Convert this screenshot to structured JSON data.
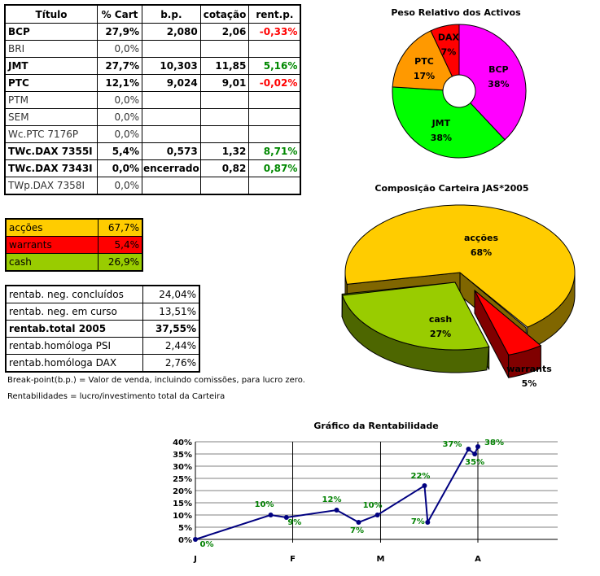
{
  "holdings": {
    "headers": [
      "Título",
      "% Cart",
      "b.p.",
      "cotação",
      "rent.p."
    ],
    "rows": [
      {
        "name": "BCP",
        "pct": "27,9%",
        "bp": "2,080",
        "cot": "2,06",
        "rent": "-0,33%",
        "bold": true,
        "rent_sign": "neg"
      },
      {
        "name": "BRI",
        "pct": "0,0%",
        "bp": "",
        "cot": "",
        "rent": "",
        "bold": false
      },
      {
        "name": "JMT",
        "pct": "27,7%",
        "bp": "10,303",
        "cot": "11,85",
        "rent": "5,16%",
        "bold": true,
        "rent_sign": "pos"
      },
      {
        "name": "PTC",
        "pct": "12,1%",
        "bp": "9,024",
        "cot": "9,01",
        "rent": "-0,02%",
        "bold": true,
        "rent_sign": "neg"
      },
      {
        "name": "PTM",
        "pct": "0,0%",
        "bp": "",
        "cot": "",
        "rent": "",
        "bold": false
      },
      {
        "name": "SEM",
        "pct": "0,0%",
        "bp": "",
        "cot": "",
        "rent": "",
        "bold": false
      },
      {
        "name": "Wc.PTC 7176P",
        "pct": "0,0%",
        "bp": "",
        "cot": "",
        "rent": "",
        "bold": false
      },
      {
        "name": "TWc.DAX 7355I",
        "pct": "5,4%",
        "bp": "0,573",
        "cot": "1,32",
        "rent": "8,71%",
        "bold": true,
        "rent_sign": "pos"
      },
      {
        "name": "TWc.DAX 7343I",
        "pct": "0,0%",
        "bp": "encerrado",
        "cot": "0,82",
        "rent": "0,87%",
        "bold": true,
        "rent_sign": "pos"
      },
      {
        "name": "TWp.DAX 7358I",
        "pct": "0,0%",
        "bp": "",
        "cot": "",
        "rent": "",
        "bold": false
      }
    ]
  },
  "composition": [
    {
      "label": "acções",
      "value": "67,7%",
      "color": "#ffcc00"
    },
    {
      "label": "warrants",
      "value": "5,4%",
      "color": "#ff0000"
    },
    {
      "label": "cash",
      "value": "26,9%",
      "color": "#99cc00"
    }
  ],
  "returns": [
    {
      "label": "rentab. neg. concluídos",
      "value": "24,04%"
    },
    {
      "label": "rentab. neg. em curso",
      "value": "13,51%"
    },
    {
      "label": "rentab.total 2005",
      "value": "37,55%",
      "bold": true
    },
    {
      "label": "rentab.homóloga PSI",
      "value": "2,44%"
    },
    {
      "label": "rentab.homóloga DAX",
      "value": "2,76%"
    }
  ],
  "notes": [
    "Break-point(b.p.) = Valor de venda, incluindo comissões, para lucro zero.",
    "Rentabilidades = lucro/investimento total da Carteira"
  ],
  "chart_data": [
    {
      "type": "pie",
      "variant": "donut",
      "title": "Peso Relativo dos Activos",
      "slices": [
        {
          "label": "BCP",
          "value": 38,
          "display": "38%",
          "color": "#ff00ff"
        },
        {
          "label": "JMT",
          "value": 38,
          "display": "38%",
          "color": "#00ff00"
        },
        {
          "label": "PTC",
          "value": 17,
          "display": "17%",
          "color": "#ff9900"
        },
        {
          "label": "DAX",
          "value": 7,
          "display": "7%",
          "color": "#ff0000"
        }
      ]
    },
    {
      "type": "pie",
      "variant": "3d-exploded",
      "title": "Composição Carteira JAS*2005",
      "slices": [
        {
          "label": "acções",
          "value": 68,
          "display": "68%",
          "color": "#ffcc00"
        },
        {
          "label": "warrants",
          "value": 5,
          "display": "5%",
          "color": "#ff0000"
        },
        {
          "label": "cash",
          "value": 27,
          "display": "27%",
          "color": "#99cc00"
        }
      ]
    },
    {
      "type": "line",
      "title": "Gráfico da Rentabilidade",
      "xlabel": "",
      "ylabel": "",
      "grid": true,
      "xticks": [
        {
          "label": "J",
          "date": "2005-01-01"
        },
        {
          "label": "F",
          "date": "2005-02-01"
        },
        {
          "label": "M",
          "date": "2005-03-01"
        },
        {
          "label": "A",
          "date": "2005-04-01"
        }
      ],
      "xlim": [
        "2005-01-01",
        "2005-04-26"
      ],
      "ylim": [
        0,
        40
      ],
      "yticks": [
        "0%",
        "5%",
        "10%",
        "15%",
        "20%",
        "25%",
        "30%",
        "35%",
        "40%"
      ],
      "line_color": "#000080",
      "label_color": "#008000",
      "points": [
        {
          "x": "2005-01-01",
          "y": 0,
          "label": "0%"
        },
        {
          "x": "2005-01-25",
          "y": 10,
          "label": "10%"
        },
        {
          "x": "2005-01-30",
          "y": 9,
          "label": "9%"
        },
        {
          "x": "2005-02-15",
          "y": 12,
          "label": "12%"
        },
        {
          "x": "2005-02-22",
          "y": 7,
          "label": "7%"
        },
        {
          "x": "2005-02-28",
          "y": 10,
          "label": "10%"
        },
        {
          "x": "2005-03-15",
          "y": 22,
          "label": "22%"
        },
        {
          "x": "2005-03-16",
          "y": 7,
          "label": "7%"
        },
        {
          "x": "2005-03-29",
          "y": 37,
          "label": "37%"
        },
        {
          "x": "2005-03-31",
          "y": 35,
          "label": "35%"
        },
        {
          "x": "2005-04-01",
          "y": 38,
          "label": "38%"
        }
      ]
    }
  ]
}
